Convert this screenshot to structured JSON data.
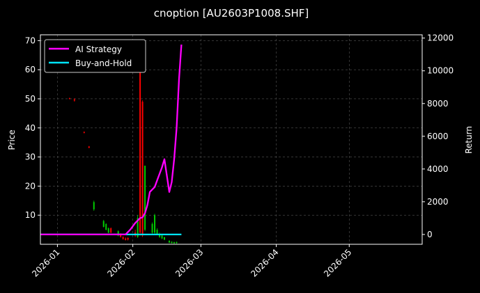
{
  "chart_data": {
    "type": "line",
    "title": "cnoption [AU2603P1008.SHF]",
    "xlabel": "",
    "ylabel": "Price",
    "ylabel_right": "Return",
    "grid": true,
    "legend_position": "top-left",
    "x_ticks": [
      "2026-01",
      "2026-02",
      "2026-03",
      "2026-04",
      "2026-05"
    ],
    "x_range": [
      "2025-12-25",
      "2026-05-31"
    ],
    "y_ticks": [
      10,
      20,
      30,
      40,
      50,
      60,
      70
    ],
    "ylim": [
      0,
      72
    ],
    "y2_ticks": [
      0,
      2000,
      4000,
      6000,
      8000,
      10000,
      12000
    ],
    "y2lim": [
      -600,
      12200
    ],
    "colors": {
      "up": "#00cc00",
      "down": "#ff0000",
      "ai": "#ff00ff",
      "bh": "#00e5ff",
      "grid": "#555555"
    },
    "candles": [
      {
        "date": "2026-01-06",
        "open": 50.2,
        "close": 50.0,
        "high": 50.4,
        "low": 49.8
      },
      {
        "date": "2026-01-08",
        "open": 49.8,
        "close": 49.4,
        "high": 50.2,
        "low": 49.0
      },
      {
        "date": "2026-01-12",
        "open": 38.6,
        "close": 38.3,
        "high": 38.8,
        "low": 38.1
      },
      {
        "date": "2026-01-14",
        "open": 33.6,
        "close": 33.2,
        "high": 33.8,
        "low": 33.0
      },
      {
        "date": "2026-01-16",
        "open": 12.0,
        "close": 14.5,
        "high": 15.0,
        "low": 11.5
      },
      {
        "date": "2026-01-20",
        "open": 6.0,
        "close": 8.0,
        "high": 8.4,
        "low": 5.8
      },
      {
        "date": "2026-01-21",
        "open": 5.0,
        "close": 7.0,
        "high": 7.2,
        "low": 4.8
      },
      {
        "date": "2026-01-22",
        "open": 4.0,
        "close": 5.5,
        "high": 5.8,
        "low": 3.8
      },
      {
        "date": "2026-01-23",
        "open": 5.5,
        "close": 4.0,
        "high": 5.8,
        "low": 3.8
      },
      {
        "date": "2026-01-26",
        "open": 3.0,
        "close": 4.5,
        "high": 4.8,
        "low": 2.8
      },
      {
        "date": "2026-01-27",
        "open": 3.5,
        "close": 2.5,
        "high": 3.8,
        "low": 2.3
      },
      {
        "date": "2026-01-28",
        "open": 2.5,
        "close": 1.8,
        "high": 2.8,
        "low": 1.6
      },
      {
        "date": "2026-01-29",
        "open": 2.0,
        "close": 1.5,
        "high": 2.4,
        "low": 1.3
      },
      {
        "date": "2026-01-30",
        "open": 2.2,
        "close": 1.6,
        "high": 2.4,
        "low": 1.3
      },
      {
        "date": "2026-02-02",
        "open": 4.0,
        "close": 3.0,
        "high": 5.0,
        "low": 2.5
      },
      {
        "date": "2026-02-03",
        "open": 2.5,
        "close": 9.0,
        "high": 10.0,
        "low": 2.2
      },
      {
        "date": "2026-02-04",
        "open": 64.0,
        "close": 4.0,
        "high": 66.0,
        "low": 3.0
      },
      {
        "date": "2026-02-05",
        "open": 49.0,
        "close": 3.0,
        "high": 49.5,
        "low": 2.5
      },
      {
        "date": "2026-02-06",
        "open": 5.0,
        "close": 27.0,
        "high": 27.0,
        "low": 4.5
      },
      {
        "date": "2026-02-09",
        "open": 4.0,
        "close": 7.0,
        "high": 7.5,
        "low": 3.5
      },
      {
        "date": "2026-02-10",
        "open": 4.0,
        "close": 10.0,
        "high": 10.5,
        "low": 3.5
      },
      {
        "date": "2026-02-11",
        "open": 3.5,
        "close": 5.0,
        "high": 5.5,
        "low": 3.2
      },
      {
        "date": "2026-02-12",
        "open": 2.5,
        "close": 3.5,
        "high": 4.0,
        "low": 2.2
      },
      {
        "date": "2026-02-13",
        "open": 2.0,
        "close": 3.0,
        "high": 3.2,
        "low": 1.8
      },
      {
        "date": "2026-02-14",
        "open": 1.6,
        "close": 2.4,
        "high": 2.6,
        "low": 1.4
      },
      {
        "date": "2026-02-16",
        "open": 0.6,
        "close": 1.2,
        "high": 1.4,
        "low": 0.4
      },
      {
        "date": "2026-02-17",
        "open": 0.4,
        "close": 0.9,
        "high": 1.0,
        "low": 0.3
      },
      {
        "date": "2026-02-18",
        "open": 0.3,
        "close": 0.7,
        "high": 0.9,
        "low": 0.2
      },
      {
        "date": "2026-02-19",
        "open": 0.4,
        "close": 0.8,
        "high": 0.9,
        "low": 0.2
      }
    ],
    "series": [
      {
        "name": "AI Strategy",
        "axis": "right",
        "points": [
          [
            "2025-12-25",
            0
          ],
          [
            "2026-01-29",
            0
          ],
          [
            "2026-01-31",
            300
          ],
          [
            "2026-02-02",
            700
          ],
          [
            "2026-02-04",
            1000
          ],
          [
            "2026-02-05",
            1050
          ],
          [
            "2026-02-06",
            1300
          ],
          [
            "2026-02-07",
            1800
          ],
          [
            "2026-02-08",
            2600
          ],
          [
            "2026-02-10",
            2900
          ],
          [
            "2026-02-11",
            3300
          ],
          [
            "2026-02-13",
            4100
          ],
          [
            "2026-02-14",
            4600
          ],
          [
            "2026-02-16",
            2600
          ],
          [
            "2026-02-17",
            3200
          ],
          [
            "2026-02-18",
            4600
          ],
          [
            "2026-02-19",
            6500
          ],
          [
            "2026-02-20",
            9500
          ],
          [
            "2026-02-21",
            11600
          ]
        ]
      },
      {
        "name": "Buy-and-Hold",
        "axis": "right",
        "points": [
          [
            "2025-12-25",
            0
          ],
          [
            "2026-02-21",
            0
          ]
        ]
      }
    ]
  }
}
